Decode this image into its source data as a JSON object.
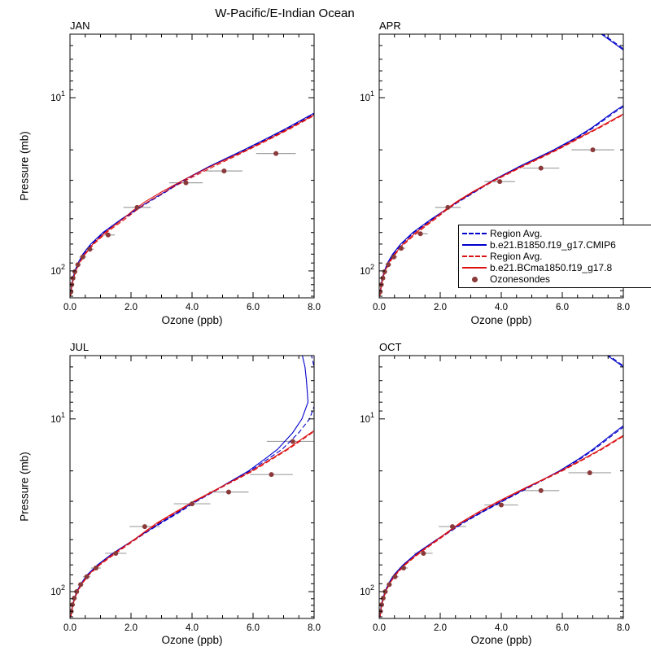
{
  "title": "W-Pacific/E-Indian Ocean",
  "axes": {
    "xlabel": "Ozone (ppb)",
    "ylabel": "Pressure (mb)",
    "xlim": [
      0,
      8
    ],
    "xticks": [
      {
        "v": 0,
        "label": "0.0"
      },
      {
        "v": 2,
        "label": "2.0"
      },
      {
        "v": 4,
        "label": "4.0"
      },
      {
        "v": 6,
        "label": "6.0"
      },
      {
        "v": 8,
        "label": "8.0"
      }
    ],
    "x_minor_step": 0.5,
    "ylim_mb": [
      143,
      4.3
    ],
    "yticks": [
      {
        "v": 10,
        "base": "10",
        "exp": "1"
      },
      {
        "v": 100,
        "base": "10",
        "exp": "2"
      }
    ],
    "y_minor": [
      5,
      6,
      7,
      8,
      9,
      20,
      30,
      40,
      50,
      60,
      70,
      80,
      90,
      110,
      120,
      130,
      140
    ]
  },
  "style": {
    "blue": "#0000cc",
    "red": "#dd1111",
    "obs_dot": "#8b3a3a",
    "err_bar": "#a0a0a0",
    "dash": [
      6,
      3
    ]
  },
  "legend": {
    "entries": [
      {
        "label": "Region Avg.",
        "color": "blue",
        "style": "dashed"
      },
      {
        "label": "b.e21.B1850.f19_g17.CMIP6",
        "color": "blue",
        "style": "solid"
      },
      {
        "label": "Region Avg.",
        "color": "red",
        "style": "dashed"
      },
      {
        "label": "b.e21.BCma1850.f19_g17.8",
        "color": "red",
        "style": "solid"
      },
      {
        "label": "Ozonesondes",
        "color": "obs_dot",
        "style": "dot"
      }
    ]
  },
  "chart_data": {
    "type": "line",
    "title": "W-Pacific/E-Indian Ocean",
    "xlabel": "Ozone (ppb)",
    "ylabel": "Pressure (mb)",
    "xlim": [
      0,
      8
    ],
    "ylim_pressure_mb": [
      143,
      4.3
    ],
    "y_scale": "log_inverted",
    "pressure_levels": [
      140,
      130,
      120,
      110,
      100,
      90,
      80,
      70,
      60,
      50,
      45,
      40,
      35,
      30,
      25,
      20,
      17,
      15,
      12,
      10,
      8,
      6,
      5,
      4.2
    ],
    "series_styles": [
      {
        "key": "blue_dashed",
        "color": "blue",
        "dash": true,
        "name": "Region Avg."
      },
      {
        "key": "blue_solid",
        "color": "blue",
        "dash": false,
        "name": "b.e21.B1850.f19_g17.CMIP6"
      },
      {
        "key": "red_dashed",
        "color": "red",
        "dash": true,
        "name": "Region Avg."
      },
      {
        "key": "red_solid",
        "color": "red",
        "dash": false,
        "name": "b.e21.BCma1850.f19_g17.8"
      }
    ],
    "panels": [
      {
        "label": "JAN",
        "series": {
          "blue_dashed": [
            0.02,
            0.04,
            0.06,
            0.11,
            0.17,
            0.27,
            0.44,
            0.71,
            1.12,
            1.74,
            2.14,
            2.59,
            3.14,
            3.74,
            4.6,
            5.75,
            6.55,
            7.15,
            8.15,
            9.05,
            9.65,
            9.85,
            9.75,
            9.65
          ],
          "blue_solid": [
            0.02,
            0.03,
            0.06,
            0.1,
            0.16,
            0.26,
            0.42,
            0.68,
            1.08,
            1.7,
            2.1,
            2.55,
            3.1,
            3.7,
            4.55,
            5.7,
            6.5,
            7.1,
            8.1,
            9.0,
            9.6,
            9.8,
            9.7,
            9.6
          ],
          "red_dashed": [
            0.02,
            0.04,
            0.07,
            0.12,
            0.2,
            0.32,
            0.5,
            0.78,
            1.2,
            1.82,
            2.15,
            2.55,
            3.1,
            3.8,
            4.7,
            5.85,
            6.65,
            7.25,
            8.25,
            9.15,
            9.8,
            9.9,
            9.7,
            9.5
          ],
          "red_solid": [
            0.02,
            0.04,
            0.07,
            0.12,
            0.19,
            0.3,
            0.48,
            0.75,
            1.15,
            1.75,
            2.05,
            2.45,
            3.0,
            3.7,
            4.6,
            5.8,
            6.6,
            7.2,
            8.2,
            9.1,
            9.8,
            9.9,
            9.7,
            9.5
          ]
        },
        "ozonesondes": [
          [
            0.03,
            132,
            0.02
          ],
          [
            0.06,
            120,
            0.03
          ],
          [
            0.1,
            110,
            0.05
          ],
          [
            0.16,
            101,
            0.07
          ],
          [
            0.26,
            92,
            0.09
          ],
          [
            0.42,
            83,
            0.11
          ],
          [
            0.65,
            75,
            0.13
          ],
          [
            1.25,
            62,
            0.22
          ],
          [
            2.2,
            43,
            0.45
          ],
          [
            3.8,
            31,
            0.55
          ],
          [
            5.05,
            26.5,
            0.6
          ],
          [
            6.75,
            21,
            0.65
          ]
        ]
      },
      {
        "label": "APR",
        "series": {
          "blue_dashed": [
            0.02,
            0.04,
            0.07,
            0.11,
            0.18,
            0.28,
            0.46,
            0.73,
            1.14,
            1.76,
            2.16,
            2.6,
            3.14,
            3.76,
            4.62,
            5.76,
            6.5,
            7.0,
            7.76,
            8.46,
            8.95,
            8.45,
            7.85,
            7.25
          ],
          "blue_solid": [
            0.02,
            0.04,
            0.06,
            0.1,
            0.17,
            0.27,
            0.44,
            0.7,
            1.1,
            1.72,
            2.12,
            2.56,
            3.1,
            3.72,
            4.58,
            5.72,
            6.45,
            6.95,
            7.7,
            8.4,
            8.9,
            8.4,
            7.8,
            7.2
          ],
          "red_dashed": [
            0.02,
            0.05,
            0.08,
            0.13,
            0.21,
            0.33,
            0.53,
            0.82,
            1.25,
            1.85,
            2.17,
            2.57,
            3.1,
            3.8,
            4.7,
            5.85,
            6.6,
            7.2,
            8.2,
            9.05,
            9.65,
            9.85,
            9.75,
            9.65
          ],
          "red_solid": [
            0.02,
            0.04,
            0.07,
            0.12,
            0.19,
            0.31,
            0.5,
            0.78,
            1.2,
            1.8,
            2.12,
            2.52,
            3.05,
            3.75,
            4.65,
            5.8,
            6.55,
            7.15,
            8.15,
            9.0,
            9.6,
            9.8,
            9.7,
            9.6
          ]
        },
        "ozonesondes": [
          [
            0.03,
            132,
            0.02
          ],
          [
            0.07,
            120,
            0.03
          ],
          [
            0.12,
            110,
            0.05
          ],
          [
            0.18,
            101,
            0.07
          ],
          [
            0.3,
            92,
            0.09
          ],
          [
            0.48,
            83,
            0.11
          ],
          [
            0.72,
            74,
            0.14
          ],
          [
            1.35,
            61,
            0.24
          ],
          [
            2.25,
            43,
            0.42
          ],
          [
            3.95,
            30.5,
            0.5
          ],
          [
            5.3,
            25.5,
            0.6
          ],
          [
            7.0,
            20,
            0.7
          ]
        ]
      },
      {
        "label": "JUL",
        "series": {
          "blue_dashed": [
            0.03,
            0.05,
            0.09,
            0.15,
            0.24,
            0.38,
            0.58,
            0.93,
            1.44,
            2.14,
            2.54,
            3.0,
            3.55,
            4.15,
            4.95,
            5.9,
            6.5,
            6.95,
            7.5,
            7.85,
            8.05,
            8.1,
            8.0,
            7.9
          ],
          "blue_solid": [
            0.03,
            0.05,
            0.08,
            0.14,
            0.22,
            0.36,
            0.56,
            0.9,
            1.4,
            2.1,
            2.5,
            2.95,
            3.5,
            4.1,
            4.9,
            5.85,
            6.4,
            6.8,
            7.3,
            7.6,
            7.8,
            7.75,
            7.7,
            7.6
          ],
          "red_dashed": [
            0.03,
            0.06,
            0.09,
            0.16,
            0.25,
            0.4,
            0.62,
            0.98,
            1.5,
            2.15,
            2.5,
            2.9,
            3.45,
            4.1,
            4.95,
            6.0,
            6.65,
            7.15,
            7.95,
            8.65,
            9.2,
            9.5,
            9.5,
            9.4
          ],
          "red_solid": [
            0.03,
            0.05,
            0.09,
            0.15,
            0.24,
            0.38,
            0.6,
            0.95,
            1.45,
            2.1,
            2.45,
            2.85,
            3.4,
            4.05,
            4.9,
            5.95,
            6.6,
            7.1,
            7.9,
            8.6,
            9.2,
            9.5,
            9.5,
            9.4
          ]
        },
        "ozonesondes": [
          [
            0.04,
            130,
            0.03
          ],
          [
            0.08,
            119,
            0.04
          ],
          [
            0.14,
            109,
            0.05
          ],
          [
            0.22,
            100,
            0.07
          ],
          [
            0.35,
            91,
            0.09
          ],
          [
            0.55,
            82,
            0.12
          ],
          [
            0.85,
            73,
            0.16
          ],
          [
            1.5,
            60,
            0.35
          ],
          [
            2.45,
            42,
            0.5
          ],
          [
            4.0,
            31,
            0.6
          ],
          [
            5.2,
            26.5,
            0.65
          ],
          [
            6.6,
            21,
            0.7
          ],
          [
            7.3,
            13.5,
            0.85
          ]
        ]
      },
      {
        "label": "OCT",
        "series": {
          "blue_dashed": [
            0.03,
            0.05,
            0.07,
            0.12,
            0.2,
            0.31,
            0.5,
            0.81,
            1.26,
            1.92,
            2.32,
            2.76,
            3.34,
            4.04,
            4.9,
            5.95,
            6.6,
            7.05,
            7.76,
            8.36,
            8.85,
            8.65,
            8.05,
            7.45
          ],
          "blue_solid": [
            0.03,
            0.04,
            0.07,
            0.12,
            0.19,
            0.3,
            0.48,
            0.78,
            1.22,
            1.88,
            2.28,
            2.72,
            3.3,
            4.0,
            4.85,
            5.9,
            6.55,
            7.0,
            7.7,
            8.3,
            8.8,
            8.6,
            8.0,
            7.4
          ],
          "red_dashed": [
            0.03,
            0.05,
            0.08,
            0.14,
            0.22,
            0.34,
            0.54,
            0.85,
            1.32,
            1.95,
            2.3,
            2.7,
            3.25,
            3.95,
            4.85,
            6.0,
            6.75,
            7.3,
            8.2,
            8.95,
            9.45,
            9.65,
            9.65,
            9.55
          ],
          "red_solid": [
            0.03,
            0.05,
            0.08,
            0.13,
            0.21,
            0.33,
            0.52,
            0.82,
            1.28,
            1.9,
            2.25,
            2.65,
            3.2,
            3.9,
            4.8,
            5.95,
            6.7,
            7.25,
            8.15,
            8.9,
            9.4,
            9.6,
            9.6,
            9.5
          ]
        },
        "ozonesondes": [
          [
            0.04,
            130,
            0.03
          ],
          [
            0.08,
            119,
            0.04
          ],
          [
            0.13,
            109,
            0.05
          ],
          [
            0.2,
            100,
            0.07
          ],
          [
            0.33,
            91,
            0.09
          ],
          [
            0.52,
            82,
            0.11
          ],
          [
            0.8,
            73,
            0.14
          ],
          [
            1.45,
            60,
            0.3
          ],
          [
            2.4,
            42,
            0.45
          ],
          [
            4.0,
            31.5,
            0.55
          ],
          [
            5.3,
            26,
            0.6
          ],
          [
            6.9,
            20.5,
            0.7
          ]
        ]
      }
    ]
  }
}
